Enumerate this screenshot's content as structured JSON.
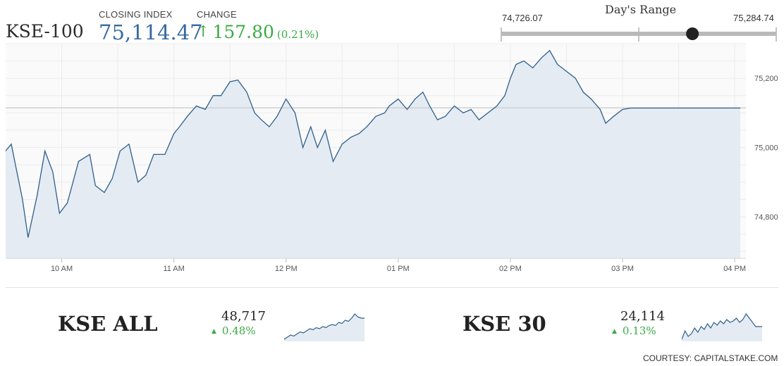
{
  "header": {
    "index_name": "KSE-100",
    "closing_label": "CLOSING INDEX",
    "closing_value": "75,114.47",
    "change_label": "CHANGE",
    "change_value": "157.80",
    "change_pct": "(0.21%)",
    "up_color": "#3aaa44",
    "value_color": "#3569a0"
  },
  "days_range": {
    "title": "Day's Range",
    "low_label": "74,726.07",
    "high_label": "75,284.74",
    "low": 74726.07,
    "high": 75284.74,
    "current": 75114.47
  },
  "chart_data": {
    "type": "area",
    "x_ticks": [
      "10 AM",
      "11 AM",
      "12 PM",
      "01 PM",
      "02 PM",
      "03 PM",
      "04 PM"
    ],
    "y_ticks": [
      "74,800",
      "75,000",
      "75,200"
    ],
    "y_tick_values": [
      74800,
      75000,
      75200
    ],
    "ylim": [
      74680,
      75300
    ],
    "xlim": [
      9.5,
      16.1
    ],
    "reference_line": 75114.47,
    "line_color": "#2f5f8c",
    "fill_color": "#e4ebf2",
    "series": [
      {
        "x": [
          9.5,
          9.55,
          9.6,
          9.65,
          9.7,
          9.78,
          9.85,
          9.92,
          9.98,
          10.05,
          10.1,
          10.15,
          10.25,
          10.3,
          10.38,
          10.45,
          10.52,
          10.6,
          10.68,
          10.75,
          10.82,
          10.92,
          11.0,
          11.05,
          11.12,
          11.2,
          11.28,
          11.35,
          11.42,
          11.5,
          11.57,
          11.65,
          11.72,
          11.78,
          11.85,
          11.92,
          12.0,
          12.08,
          12.15,
          12.22,
          12.28,
          12.35,
          12.42,
          12.5,
          12.58,
          12.65,
          12.72,
          12.8,
          12.88,
          12.92,
          13.0,
          13.08,
          13.15,
          13.22,
          13.28,
          13.35,
          13.42,
          13.5,
          13.58,
          13.65,
          13.72,
          13.8,
          13.88,
          13.95,
          14.0,
          14.05,
          14.12,
          14.2,
          14.28,
          14.35,
          14.42,
          14.5,
          14.58,
          14.65,
          14.72,
          14.8,
          14.85,
          14.92,
          15.0,
          15.07,
          15.12,
          15.18,
          15.25,
          15.32,
          15.4,
          15.45,
          15.5,
          16.05
        ],
        "y": [
          74990,
          75010,
          74930,
          74850,
          74740,
          74860,
          74990,
          74930,
          74810,
          74840,
          74900,
          74960,
          74980,
          74890,
          74870,
          74910,
          74990,
          75010,
          74900,
          74920,
          74980,
          74980,
          75040,
          75060,
          75090,
          75120,
          75110,
          75150,
          75150,
          75190,
          75195,
          75160,
          75100,
          75080,
          75060,
          75090,
          75140,
          75100,
          75000,
          75060,
          75000,
          75050,
          74960,
          75010,
          75030,
          75040,
          75060,
          75090,
          75100,
          75120,
          75140,
          75110,
          75140,
          75160,
          75120,
          75080,
          75090,
          75120,
          75100,
          75110,
          75080,
          75100,
          75120,
          75150,
          75200,
          75240,
          75250,
          75230,
          75260,
          75280,
          75240,
          75220,
          75200,
          75160,
          75140,
          75110,
          75070,
          75090,
          75110,
          75114,
          75114,
          75114,
          75114,
          75114,
          75114,
          75114,
          75114,
          75114
        ]
      }
    ]
  },
  "lower": {
    "kse_all": {
      "name": "KSE ALL",
      "value": "48,717",
      "change": "0.48%",
      "spark": [
        10,
        12,
        14,
        13,
        15,
        17,
        16,
        18,
        20,
        19,
        21,
        20,
        22,
        21,
        23,
        24,
        23,
        26,
        25,
        28,
        27,
        30,
        34,
        31,
        30,
        30
      ]
    },
    "kse_30": {
      "name": "KSE 30",
      "value": "24,114",
      "change": "0.13%",
      "spark": [
        12,
        18,
        14,
        16,
        20,
        17,
        21,
        19,
        23,
        20,
        24,
        22,
        25,
        23,
        26,
        24,
        25,
        27,
        24,
        26,
        30,
        27,
        24,
        21,
        21,
        21
      ]
    }
  },
  "footer": {
    "courtesy": "COURTESY: CAPITALSTAKE.COM"
  }
}
